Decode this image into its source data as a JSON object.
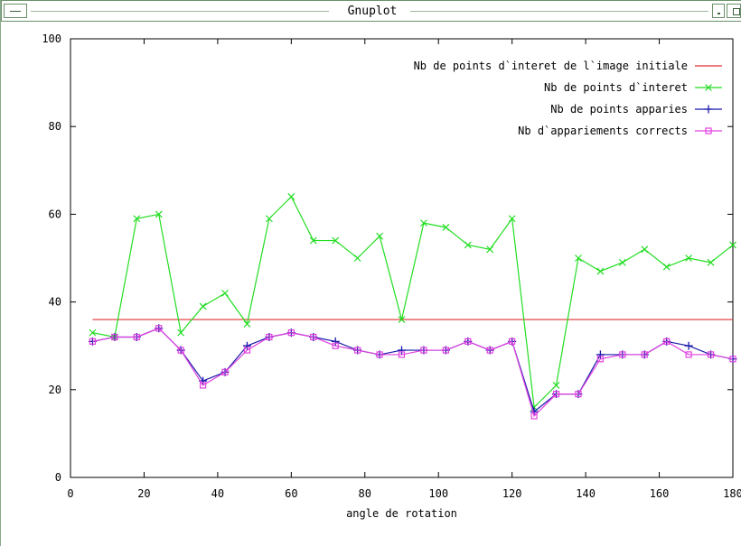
{
  "window": {
    "title": "Gnuplot"
  },
  "chart_data": {
    "type": "line",
    "title": "",
    "xlabel": "angle de rotation",
    "ylabel": "",
    "xlim": [
      0,
      180
    ],
    "ylim": [
      0,
      100
    ],
    "xticks": [
      0,
      20,
      40,
      60,
      80,
      100,
      120,
      140,
      160,
      180
    ],
    "yticks": [
      0,
      20,
      40,
      60,
      80,
      100
    ],
    "legend_position": "top-right",
    "grid": false,
    "x": [
      6,
      12,
      18,
      24,
      30,
      36,
      42,
      48,
      54,
      60,
      66,
      72,
      78,
      84,
      90,
      96,
      102,
      108,
      114,
      120,
      126,
      132,
      138,
      144,
      150,
      156,
      162,
      168,
      174,
      180
    ],
    "series": [
      {
        "name": "Nb de points d`interet de l`image initiale",
        "color": "#e03030",
        "marker": "none",
        "values": [
          36,
          36,
          36,
          36,
          36,
          36,
          36,
          36,
          36,
          36,
          36,
          36,
          36,
          36,
          36,
          36,
          36,
          36,
          36,
          36,
          36,
          36,
          36,
          36,
          36,
          36,
          36,
          36,
          36,
          36
        ]
      },
      {
        "name": "Nb de points d`interet",
        "color": "#22dd22",
        "marker": "x",
        "values": [
          33,
          32,
          59,
          60,
          33,
          39,
          42,
          35,
          59,
          64,
          54,
          54,
          50,
          55,
          36,
          58,
          57,
          53,
          52,
          59,
          16,
          21,
          50,
          47,
          49,
          52,
          48,
          50,
          49,
          53
        ]
      },
      {
        "name": "Nb de points apparies",
        "color": "#1a1aaa",
        "marker": "plus",
        "values": [
          31,
          32,
          32,
          34,
          29,
          22,
          24,
          30,
          32,
          33,
          32,
          31,
          29,
          28,
          29,
          29,
          29,
          31,
          29,
          31,
          15,
          19,
          19,
          28,
          28,
          28,
          31,
          30,
          28,
          27
        ]
      },
      {
        "name": "Nb d`appariements corrects",
        "color": "#e040e0",
        "marker": "square",
        "values": [
          31,
          32,
          32,
          34,
          29,
          21,
          24,
          29,
          32,
          33,
          32,
          30,
          29,
          28,
          28,
          29,
          29,
          31,
          29,
          31,
          14,
          19,
          19,
          27,
          28,
          28,
          31,
          28,
          28,
          27
        ]
      }
    ]
  }
}
